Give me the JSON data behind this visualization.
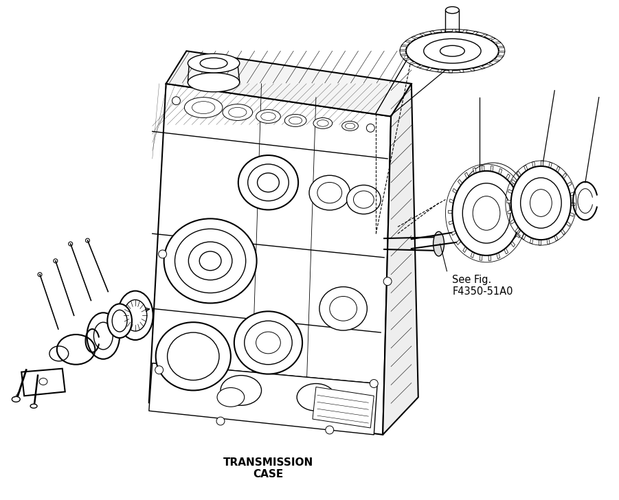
{
  "background_color": "#ffffff",
  "line_color": "#000000",
  "label_see_fig": "See Fig.\nF4350-51A0",
  "label_transmission": "TRANSMISSION\nCASE",
  "label_fontsize": 10.5,
  "label_bold_fontsize": 11
}
